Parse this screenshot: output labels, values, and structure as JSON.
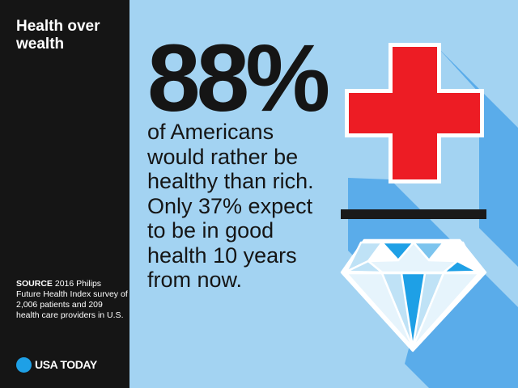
{
  "sidebar": {
    "title": "Health over wealth",
    "source_label": "SOURCE",
    "source_text": " 2016 Philips Future Health Index survey of 2,006 patients and 209 health care providers in U.S.",
    "logo_text": "USA TODAY"
  },
  "main": {
    "stat": "88%",
    "body": "of Americans would rather be healthy than rich. Only 37% expect to be in good health 10 years from now."
  },
  "colors": {
    "background": "#a3d3f2",
    "shadow": "#5aacea",
    "sidebar": "#151515",
    "cross": "#ed1c24",
    "logo_dot": "#1ea0e6"
  },
  "icons": [
    "red-cross-icon",
    "minus-bar-icon",
    "diamond-icon"
  ]
}
